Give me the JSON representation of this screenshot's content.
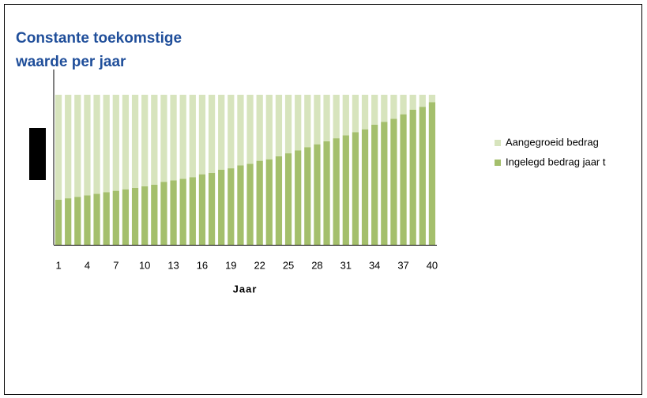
{
  "chart_data": {
    "type": "stacked_bar",
    "title": "Constante toekomstige waarde per jaar",
    "x_label": "Jaar",
    "categories": [
      "1",
      null,
      null,
      "4",
      null,
      null,
      "7",
      null,
      null,
      "10",
      null,
      null,
      "13",
      null,
      null,
      "16",
      null,
      null,
      "19",
      null,
      null,
      "22",
      null,
      null,
      "25",
      null,
      null,
      "28",
      null,
      null,
      "31",
      null,
      null,
      "34",
      null,
      null,
      "37",
      null,
      null,
      "40"
    ],
    "series": [
      {
        "name": "Aangegroeid bedrag",
        "color": "#d7e4bd",
        "values": [
          70,
          69,
          68,
          67,
          66,
          65,
          64,
          63,
          62,
          61,
          60,
          58,
          57,
          56,
          55,
          53,
          52,
          50,
          49,
          47,
          46,
          44,
          43,
          41,
          39,
          37,
          35,
          33,
          31,
          29,
          27,
          25,
          23,
          20,
          18,
          16,
          13,
          10,
          8,
          5
        ]
      },
      {
        "name": "Ingelegd bedrag jaar t",
        "color": "#a4bf6c",
        "values": [
          30,
          31,
          32,
          33,
          34,
          35,
          36,
          37,
          38,
          39,
          40,
          42,
          43,
          44,
          45,
          47,
          48,
          50,
          51,
          53,
          54,
          56,
          57,
          59,
          61,
          63,
          65,
          67,
          69,
          71,
          73,
          75,
          77,
          80,
          82,
          84,
          87,
          90,
          92,
          95
        ]
      }
    ],
    "ylim": [
      0,
      100
    ],
    "legend": "right"
  }
}
